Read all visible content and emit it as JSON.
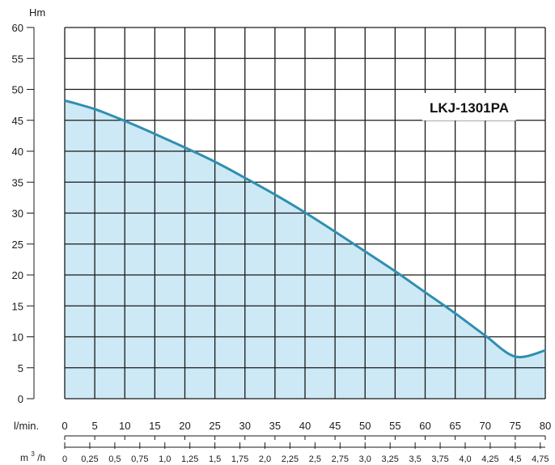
{
  "chart_data": {
    "type": "area",
    "title": "",
    "ylabel": "Hm",
    "ylim": [
      0,
      60
    ],
    "yticks": [
      0,
      5,
      10,
      15,
      20,
      25,
      30,
      35,
      40,
      45,
      50,
      55,
      60
    ],
    "x_primary": {
      "label": "l/min.",
      "range": [
        0,
        80
      ],
      "ticks": [
        "0",
        "5",
        "10",
        "15",
        "20",
        "25",
        "30",
        "35",
        "40",
        "45",
        "50",
        "55",
        "60",
        "65",
        "70",
        "75",
        "80"
      ]
    },
    "x_secondary": {
      "label_base": "m",
      "label_sup": "3",
      "label_tail": "/h",
      "ticks": [
        "0",
        "0,25",
        "0,5",
        "0,75",
        "1,0",
        "1,25",
        "1,5",
        "1,75",
        "2,0",
        "2,25",
        "2,5",
        "2,75",
        "3,0",
        "3,25",
        "3,5",
        "3,75",
        "4,0",
        "4,25",
        "4,5",
        "4,75"
      ]
    },
    "grid": true,
    "model": "LKJ-1301PA",
    "series": [
      {
        "x": [
          0,
          5,
          10,
          15,
          20,
          25,
          30,
          35,
          40,
          45,
          50,
          55,
          60,
          65,
          70,
          75,
          80
        ],
        "y": [
          48.2,
          46.8,
          44.9,
          42.8,
          40.6,
          38.3,
          35.7,
          33.0,
          30.1,
          27.0,
          23.8,
          20.6,
          17.2,
          13.8,
          10.2,
          6.8,
          7.8
        ]
      }
    ],
    "colors": {
      "line": "#2f8fb0",
      "fill": "#cde9f5",
      "grid": "#1a1a1a",
      "axis": "#1a1a1a"
    }
  }
}
